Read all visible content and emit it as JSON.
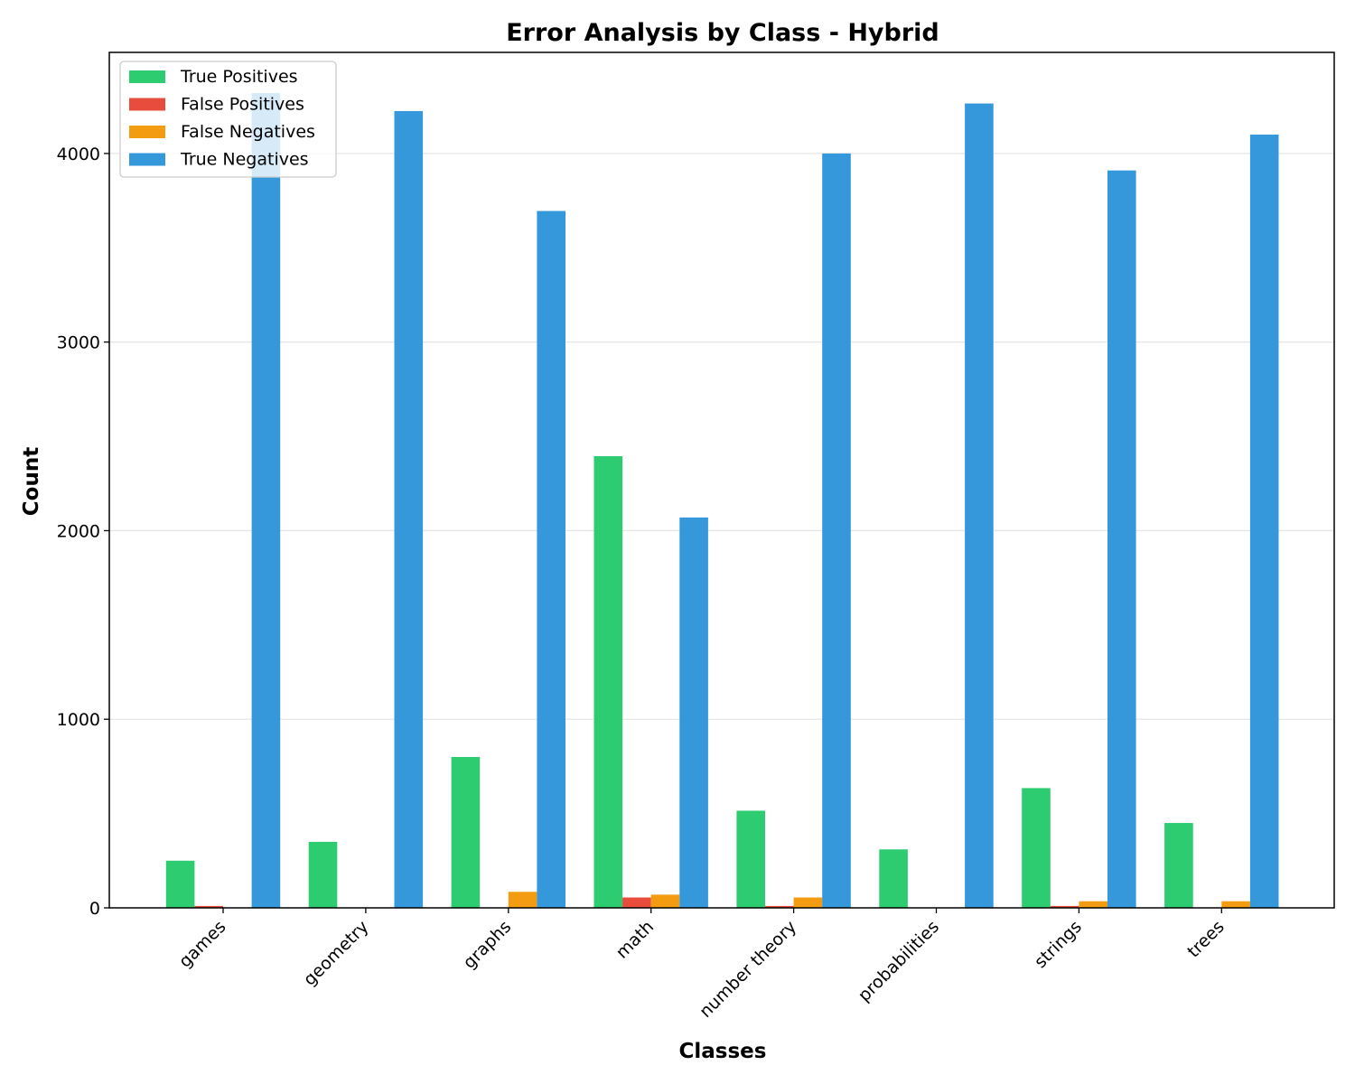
{
  "chart_data": {
    "type": "bar",
    "title": "Error Analysis by Class - Hybrid",
    "xlabel": "Classes",
    "ylabel": "Count",
    "categories": [
      "games",
      "geometry",
      "graphs",
      "math",
      "number theory",
      "probabilities",
      "strings",
      "trees"
    ],
    "series": [
      {
        "name": "True Positives",
        "color": "#2ecc71",
        "values": [
          250,
          350,
          800,
          2395,
          515,
          310,
          635,
          450
        ]
      },
      {
        "name": "False Positives",
        "color": "#e74c3c",
        "values": [
          10,
          0,
          0,
          55,
          10,
          0,
          10,
          0
        ]
      },
      {
        "name": "False Negatives",
        "color": "#f39c12",
        "values": [
          0,
          0,
          85,
          70,
          55,
          0,
          35,
          35
        ]
      },
      {
        "name": "True Negatives",
        "color": "#3498db",
        "values": [
          4320,
          4225,
          3695,
          2070,
          4000,
          4265,
          3910,
          4100
        ]
      }
    ],
    "yticks": [
      0,
      1000,
      2000,
      3000,
      4000
    ],
    "ylim": [
      0,
      4536
    ],
    "grid": "y",
    "legend_position": "top-left"
  }
}
